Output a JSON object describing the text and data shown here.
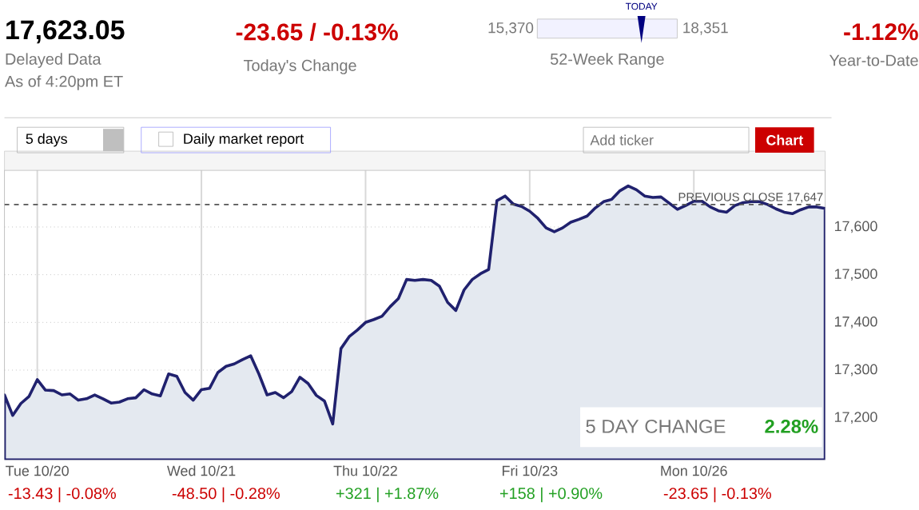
{
  "chart_data": {
    "type": "area",
    "categories": [
      null,
      null,
      null,
      null,
      "Tue 10/20",
      null,
      null,
      null,
      null,
      null,
      null,
      null,
      null,
      null,
      null,
      null,
      null,
      null,
      null,
      null,
      null,
      null,
      null,
      null,
      "Wed 10/21",
      null,
      null,
      null,
      null,
      null,
      null,
      null,
      null,
      null,
      null,
      null,
      null,
      null,
      null,
      null,
      null,
      null,
      null,
      null,
      "Thu 10/22",
      null,
      null,
      null,
      null,
      null,
      null,
      null,
      null,
      null,
      null,
      null,
      null,
      null,
      null,
      null,
      null,
      null,
      null,
      null,
      "Fri 10/23",
      null,
      null,
      null,
      null,
      null,
      null,
      null,
      null,
      null,
      null,
      null,
      null,
      null,
      null,
      null,
      null,
      null,
      null,
      null,
      "Mon 10/26",
      null,
      null,
      null,
      null,
      null,
      null,
      null,
      null,
      null,
      null,
      null,
      null,
      null,
      null,
      null,
      null
    ],
    "series": [
      {
        "color": "#e4e9f0",
        "values": [
          17248,
          17205,
          17230,
          17245,
          17280,
          17258,
          17257,
          17248,
          17250,
          17237,
          17240,
          17248,
          17240,
          17231,
          17233,
          17240,
          17242,
          17259,
          17250,
          17246,
          17292,
          17287,
          17253,
          17237,
          17259,
          17262,
          17295,
          17308,
          17313,
          17322,
          17330,
          17292,
          17248,
          17253,
          17242,
          17255,
          17285,
          17272,
          17247,
          17235,
          17187,
          17345,
          17370,
          17384,
          17400,
          17406,
          17413,
          17433,
          17450,
          17490,
          17488,
          17490,
          17488,
          17476,
          17442,
          17425,
          17468,
          17490,
          17502,
          17511,
          17655,
          17665,
          17648,
          17643,
          17633,
          17618,
          17598,
          17590,
          17598,
          17610,
          17616,
          17623,
          17640,
          17653,
          17658,
          17676,
          17686,
          17678,
          17665,
          17662,
          17663,
          17650,
          17637,
          17645,
          17654,
          17654,
          17642,
          17634,
          17631,
          17645,
          17651,
          17653,
          17653,
          17647,
          17638,
          17631,
          17628,
          17636,
          17642,
          17642,
          17639
        ]
      }
    ],
    "ylim": [
      17112,
      17719
    ],
    "yticks": [
      {
        "value": 17200,
        "label": "17,200"
      },
      {
        "value": 17300,
        "label": "17,300"
      },
      {
        "value": 17400,
        "label": "17,400"
      },
      {
        "value": 17500,
        "label": "17,500"
      },
      {
        "value": 17600,
        "label": "17,600"
      }
    ],
    "grid": true,
    "ref_lines": [
      {
        "axis": "y",
        "value": 17647,
        "label": "PREVIOUS CLOSE 17,647",
        "line_style": "dashed",
        "color": "#555555"
      }
    ],
    "annotations": [
      "17,623.05",
      "Delayed Data",
      "As of 4:20pm ET",
      "-23.65 / -0.13%",
      "Today's Change",
      "15,370",
      "18,351",
      "TODAY",
      "52-Week Range",
      "-1.12%",
      "Year-to-Date",
      "5 days",
      "Daily market report",
      "Add ticker",
      "Chart",
      "5 DAY CHANGE",
      "2.28%",
      "-13.43 | -0.08%",
      "-48.50 | -0.28%",
      "+321 | +1.87%",
      "+158 | +0.90%",
      "-23.65 | -0.13%"
    ]
  }
}
